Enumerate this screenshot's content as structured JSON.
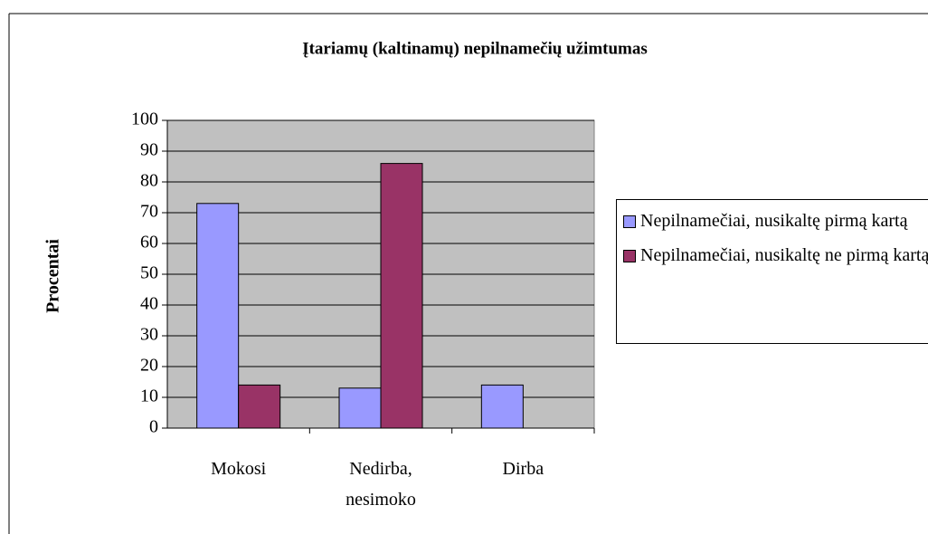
{
  "chart_data": {
    "type": "bar",
    "title": "Įtariamų (kaltinamų) nepilnamečių užimtumas",
    "y_label": "Procentai",
    "categories": [
      "Mokosi",
      "Nedirba, nesimoko",
      "Dirba"
    ],
    "series": [
      {
        "name": "Nepilnamečiai, nusikaltę pirmą kartą",
        "color": "#9999ff",
        "values": [
          73,
          13,
          14
        ]
      },
      {
        "name": "Nepilnamečiai, nusikaltę ne pirmą kartą",
        "color": "#993366",
        "values": [
          14,
          86,
          null
        ]
      }
    ],
    "ylim": [
      0,
      100
    ],
    "yticks": [
      0,
      10,
      20,
      30,
      40,
      50,
      60,
      70,
      80,
      90,
      100
    ],
    "grid": true,
    "plot_background": "#c0c0c0",
    "legend": "right"
  }
}
